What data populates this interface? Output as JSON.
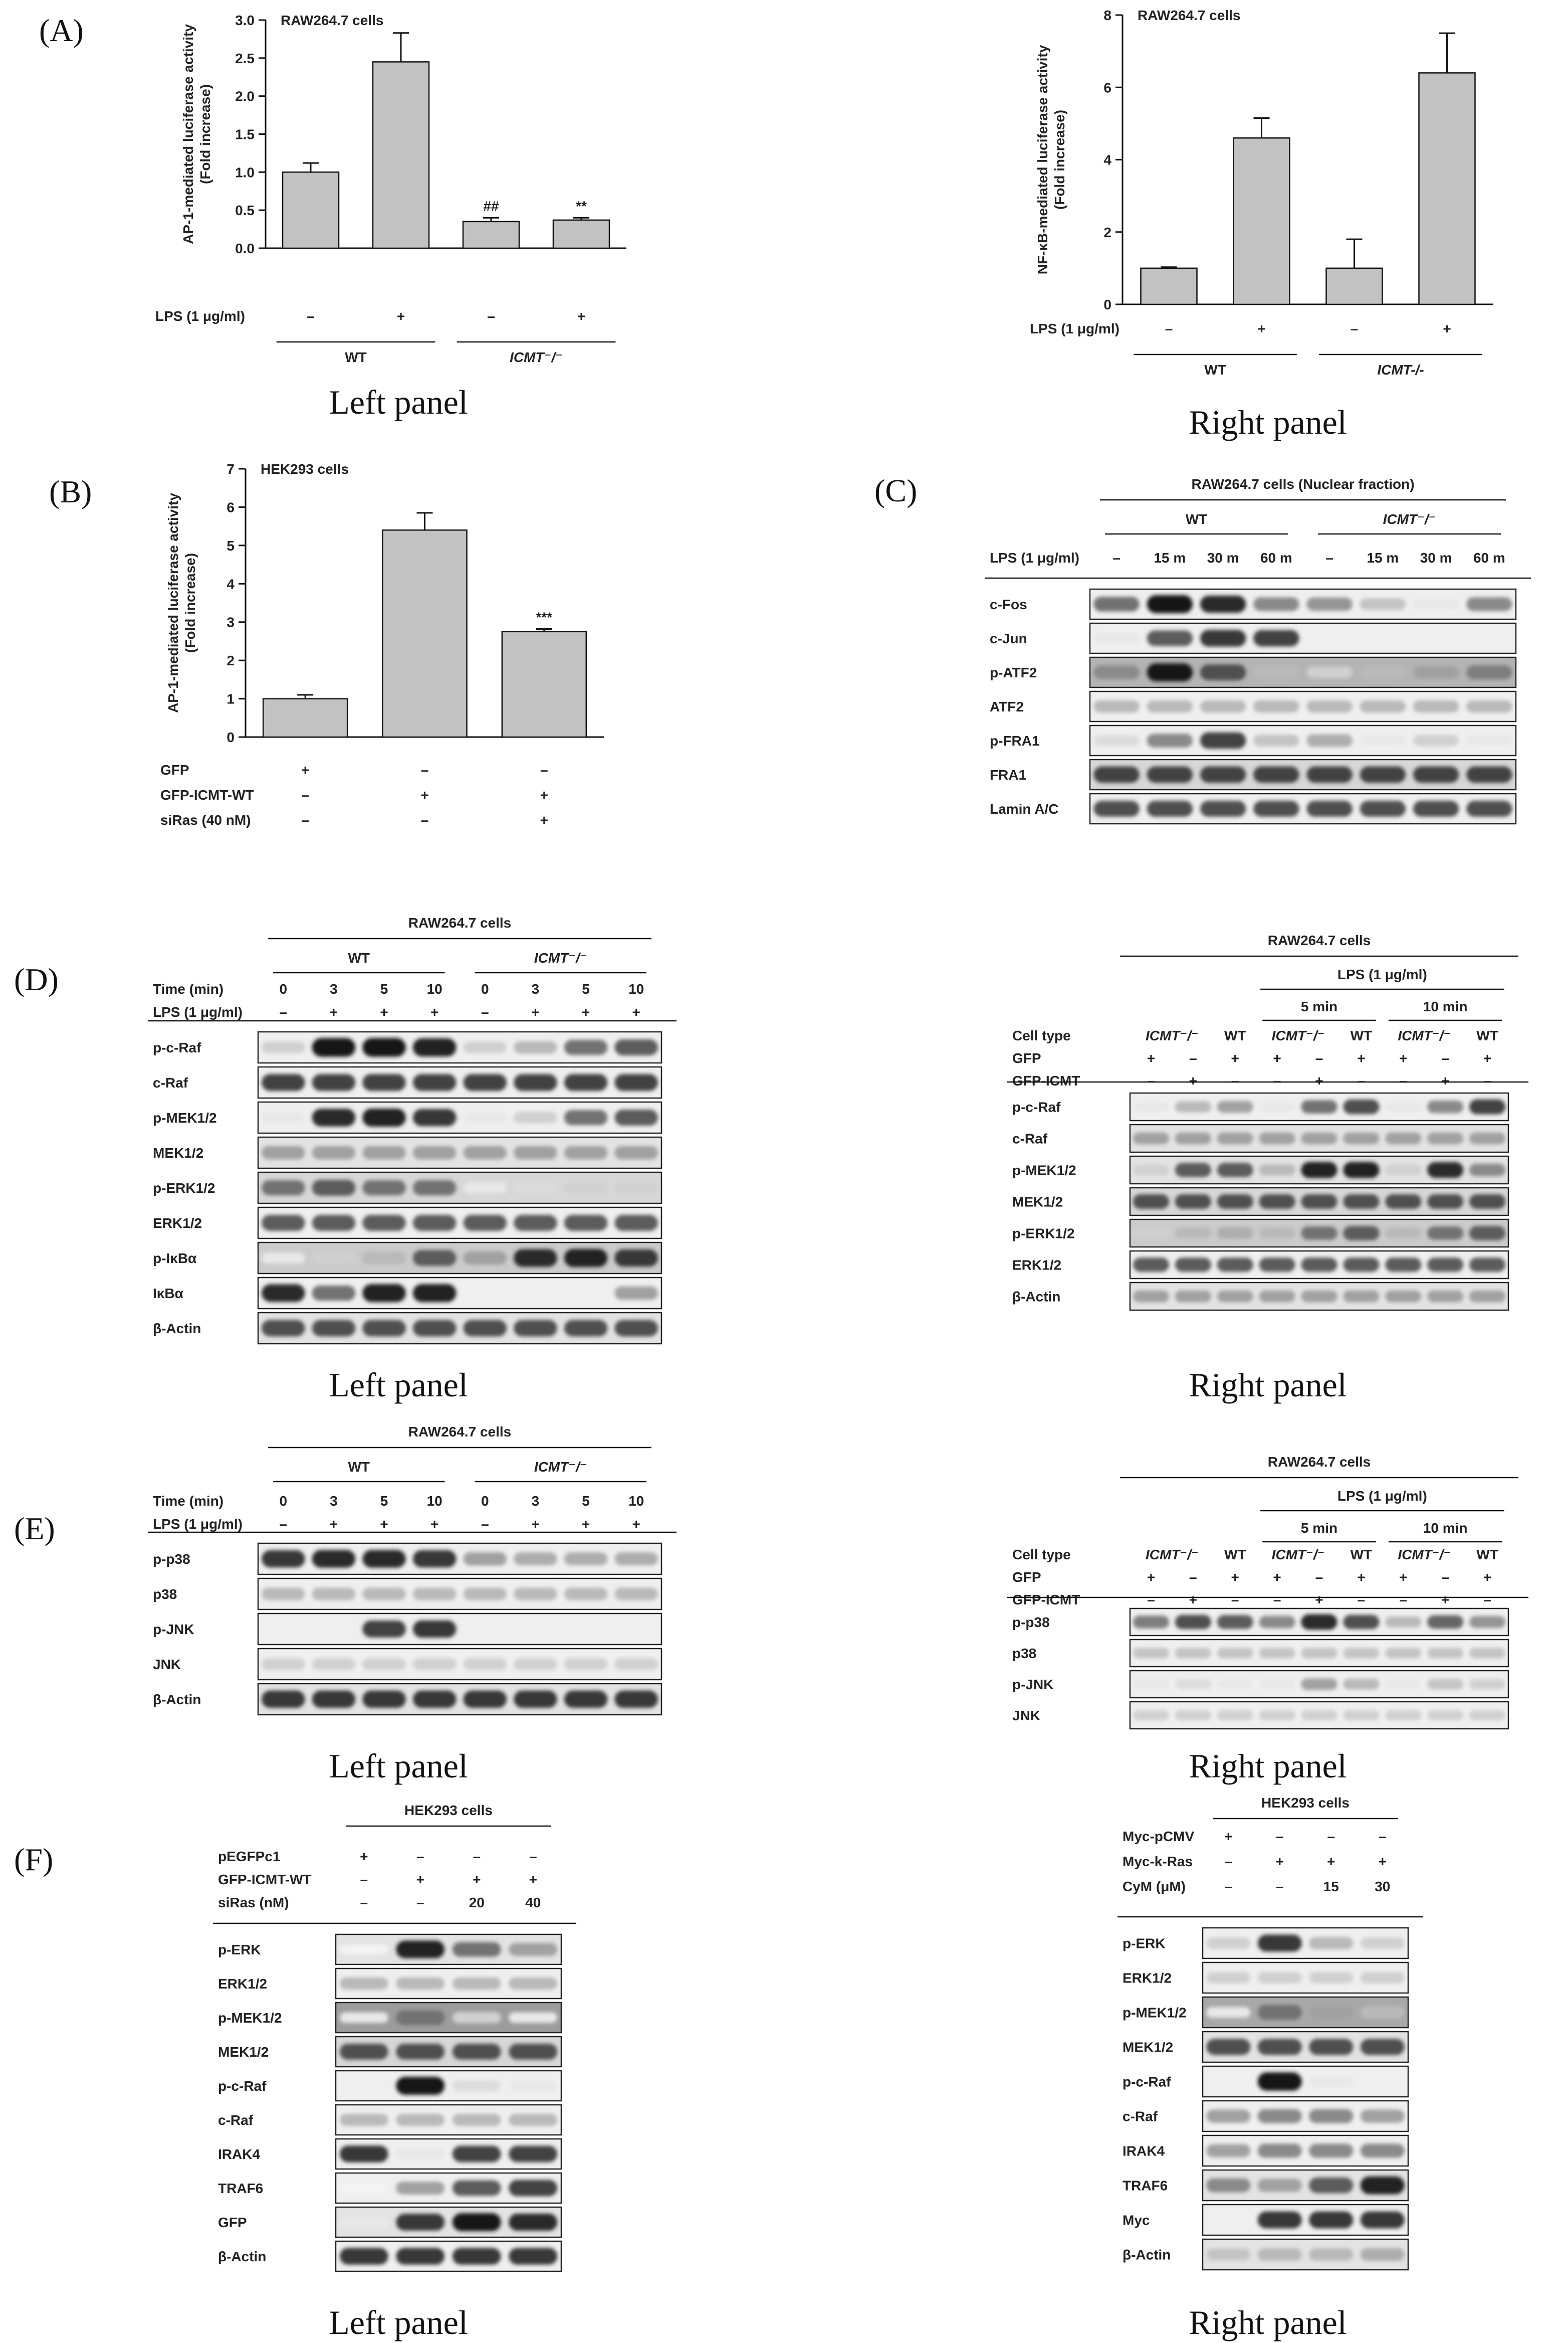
{
  "panels": {
    "A": "(A)",
    "B": "(B)",
    "C": "(C)",
    "D": "(D)",
    "E": "(E)",
    "F": "(F)"
  },
  "captions": {
    "left": "Left panel",
    "right": "Right panel"
  },
  "chart_data": [
    {
      "id": "A-left",
      "type": "bar",
      "title": "RAW264.7 cells",
      "ylabel": "AP-1-mediated luciferase activity (Fold increase)",
      "ylim": [
        0,
        3.0
      ],
      "yticks": [
        "0.0",
        "0.5",
        "1.0",
        "1.5",
        "2.0",
        "2.5",
        "3.0"
      ],
      "values": [
        1.0,
        2.45,
        0.35,
        0.37
      ],
      "errors": [
        0.12,
        0.38,
        0.05,
        0.03
      ],
      "annotations": [
        "",
        "",
        "##",
        "**"
      ],
      "rows": [
        {
          "label": "LPS (1 μg/ml)",
          "values": [
            "–",
            "+",
            "–",
            "+"
          ]
        }
      ],
      "groups": [
        {
          "label": "WT",
          "italic": false
        },
        {
          "label": "ICMT⁻/⁻",
          "italic": true
        }
      ]
    },
    {
      "id": "A-right",
      "type": "bar",
      "title": "RAW264.7 cells",
      "ylabel": "NF-κB-mediated luciferase activity (Fold increase)",
      "ylim": [
        0,
        8
      ],
      "yticks": [
        "0",
        "2",
        "4",
        "6",
        "8"
      ],
      "values": [
        1.0,
        4.6,
        1.0,
        6.4
      ],
      "errors": [
        0.03,
        0.55,
        0.8,
        1.1
      ],
      "annotations": [
        "",
        "",
        "",
        ""
      ],
      "rows": [
        {
          "label": "LPS (1 μg/ml)",
          "values": [
            "–",
            "+",
            "–",
            "+"
          ]
        }
      ],
      "groups": [
        {
          "label": "WT",
          "italic": false
        },
        {
          "label": "ICMT-/-",
          "italic": true
        }
      ]
    },
    {
      "id": "B",
      "type": "bar",
      "title": "HEK293 cells",
      "ylabel": "AP-1-mediated luciferase activity (Fold increase)",
      "ylim": [
        0,
        7
      ],
      "yticks": [
        "0",
        "1",
        "2",
        "3",
        "4",
        "5",
        "6",
        "7"
      ],
      "values": [
        1.0,
        5.4,
        2.75
      ],
      "errors": [
        0.1,
        0.45,
        0.07
      ],
      "annotations": [
        "",
        "",
        "***"
      ],
      "rows": [
        {
          "label": "GFP",
          "values": [
            "+",
            "–",
            "–"
          ]
        },
        {
          "label": "GFP-ICMT-WT",
          "values": [
            "–",
            "+",
            "+"
          ]
        },
        {
          "label": "siRas (40 nM)",
          "values": [
            "–",
            "–",
            "+"
          ]
        }
      ]
    }
  ],
  "blots": {
    "C": {
      "title": "RAW264.7 cells (Nuclear fraction)",
      "groups": [
        {
          "label": "WT",
          "italic": false
        },
        {
          "label": "ICMT⁻/⁻",
          "italic": true
        }
      ],
      "rows": [
        {
          "label": "LPS (1 μg/ml)",
          "values": [
            "–",
            "15 m",
            "30 m",
            "60 m",
            "–",
            "15 m",
            "30 m",
            "60 m"
          ]
        }
      ],
      "bands": [
        {
          "label": "c-Fos",
          "i": [
            0.6,
            1.0,
            0.9,
            0.5,
            0.45,
            0.25,
            0.1,
            0.5
          ],
          "bg": 0.0
        },
        {
          "label": "c-Jun",
          "i": [
            0.1,
            0.7,
            0.85,
            0.8,
            0,
            0,
            0,
            0
          ],
          "bg": 0.0
        },
        {
          "label": "p-ATF2",
          "i": [
            0.5,
            1.0,
            0.75,
            0.3,
            0.2,
            0.3,
            0.4,
            0.55
          ],
          "bg": 0.25
        },
        {
          "label": "ATF2",
          "i": [
            0.3,
            0.3,
            0.3,
            0.3,
            0.3,
            0.3,
            0.3,
            0.3
          ],
          "bg": 0.0
        },
        {
          "label": "p-FRA1",
          "i": [
            0.15,
            0.5,
            0.8,
            0.25,
            0.35,
            0.1,
            0.2,
            0.1
          ],
          "bg": 0.0
        },
        {
          "label": "FRA1",
          "i": [
            0.8,
            0.8,
            0.8,
            0.8,
            0.8,
            0.8,
            0.8,
            0.8
          ],
          "bg": 0.1
        },
        {
          "label": "Lamin A/C",
          "i": [
            0.75,
            0.75,
            0.75,
            0.75,
            0.75,
            0.75,
            0.75,
            0.75
          ],
          "bg": 0.0
        }
      ]
    },
    "D_left": {
      "title": "RAW264.7 cells",
      "groups": [
        {
          "label": "WT",
          "italic": false
        },
        {
          "label": "ICMT⁻/⁻",
          "italic": true
        }
      ],
      "rows": [
        {
          "label": "Time (min)",
          "values": [
            "0",
            "3",
            "5",
            "10",
            "0",
            "3",
            "5",
            "10"
          ]
        },
        {
          "label": "LPS (1 μg/ml)",
          "values": [
            "–",
            "+",
            "+",
            "+",
            "–",
            "+",
            "+",
            "+"
          ]
        }
      ],
      "bands": [
        {
          "label": "p-c-Raf",
          "i": [
            0.2,
            1.0,
            1.0,
            0.95,
            0.2,
            0.3,
            0.6,
            0.7
          ],
          "bg": 0.0
        },
        {
          "label": "c-Raf",
          "i": [
            0.8,
            0.8,
            0.8,
            0.8,
            0.8,
            0.8,
            0.8,
            0.8
          ],
          "bg": 0.0
        },
        {
          "label": "p-MEK1/2",
          "i": [
            0.1,
            0.9,
            0.95,
            0.85,
            0.1,
            0.2,
            0.6,
            0.7
          ],
          "bg": 0.0
        },
        {
          "label": "MEK1/2",
          "i": [
            0.4,
            0.4,
            0.4,
            0.4,
            0.4,
            0.4,
            0.4,
            0.4
          ],
          "bg": 0.05
        },
        {
          "label": "p-ERK1/2",
          "i": [
            0.6,
            0.7,
            0.6,
            0.6,
            0.1,
            0.15,
            0.2,
            0.2
          ],
          "bg": 0.1
        },
        {
          "label": "ERK1/2",
          "i": [
            0.7,
            0.7,
            0.7,
            0.7,
            0.7,
            0.7,
            0.7,
            0.7
          ],
          "bg": 0.0
        },
        {
          "label": "p-IκBα",
          "i": [
            0.1,
            0.2,
            0.3,
            0.7,
            0.4,
            0.9,
            0.95,
            0.85
          ],
          "bg": 0.15
        },
        {
          "label": "IκBα",
          "i": [
            0.9,
            0.6,
            0.95,
            0.95,
            0,
            0,
            0,
            0.4
          ],
          "bg": 0.0
        },
        {
          "label": "β-Actin",
          "i": [
            0.75,
            0.75,
            0.75,
            0.75,
            0.75,
            0.75,
            0.75,
            0.75
          ],
          "bg": 0.05
        }
      ]
    },
    "D_right": {
      "title": "RAW264.7 cells",
      "lps": "LPS (1 μg/ml)",
      "times": [
        "5 min",
        "10 min"
      ],
      "rows": [
        {
          "label": "Cell type",
          "values": [
            "ICMT⁻/⁻",
            "WT",
            "ICMT⁻/⁻",
            "WT",
            "ICMT⁻/⁻",
            "WT"
          ]
        },
        {
          "label": "GFP",
          "values": [
            "+",
            "–",
            "+",
            "+",
            "–",
            "+",
            "+",
            "–",
            "+"
          ]
        },
        {
          "label": "GFP-ICMT",
          "values": [
            "–",
            "+",
            "–",
            "–",
            "+",
            "–",
            "–",
            "+",
            "–"
          ]
        }
      ],
      "bands": [
        {
          "label": "p-c-Raf",
          "i": [
            0.1,
            0.3,
            0.4,
            0.1,
            0.6,
            0.75,
            0.1,
            0.5,
            0.8
          ],
          "bg": 0.0
        },
        {
          "label": "c-Raf",
          "i": [
            0.4,
            0.4,
            0.4,
            0.4,
            0.4,
            0.4,
            0.4,
            0.4,
            0.4
          ],
          "bg": 0.05
        },
        {
          "label": "p-MEK1/2",
          "i": [
            0.2,
            0.7,
            0.7,
            0.3,
            0.95,
            0.95,
            0.2,
            0.9,
            0.5
          ],
          "bg": 0.05
        },
        {
          "label": "MEK1/2",
          "i": [
            0.75,
            0.75,
            0.75,
            0.75,
            0.75,
            0.75,
            0.75,
            0.75,
            0.75
          ],
          "bg": 0.1
        },
        {
          "label": "p-ERK1/2",
          "i": [
            0.2,
            0.3,
            0.35,
            0.3,
            0.6,
            0.7,
            0.3,
            0.6,
            0.7
          ],
          "bg": 0.15
        },
        {
          "label": "ERK1/2",
          "i": [
            0.7,
            0.7,
            0.7,
            0.7,
            0.7,
            0.7,
            0.7,
            0.7,
            0.7
          ],
          "bg": 0.0
        },
        {
          "label": "β-Actin",
          "i": [
            0.4,
            0.4,
            0.4,
            0.4,
            0.4,
            0.4,
            0.4,
            0.4,
            0.4
          ],
          "bg": 0.05
        }
      ]
    },
    "E_left": {
      "title": "RAW264.7 cells",
      "groups": [
        {
          "label": "WT",
          "italic": false
        },
        {
          "label": "ICMT⁻/⁻",
          "italic": true
        }
      ],
      "rows": [
        {
          "label": "Time (min)",
          "values": [
            "0",
            "3",
            "5",
            "10",
            "0",
            "3",
            "5",
            "10"
          ]
        },
        {
          "label": "LPS (1 μg/ml)",
          "values": [
            "–",
            "+",
            "+",
            "+",
            "–",
            "+",
            "+",
            "+"
          ]
        }
      ],
      "bands": [
        {
          "label": "p-p38",
          "i": [
            0.85,
            0.9,
            0.9,
            0.85,
            0.4,
            0.35,
            0.35,
            0.35
          ],
          "bg": 0.0
        },
        {
          "label": "p38",
          "i": [
            0.3,
            0.3,
            0.3,
            0.3,
            0.3,
            0.3,
            0.3,
            0.3
          ],
          "bg": 0.0
        },
        {
          "label": "p-JNK",
          "i": [
            0,
            0,
            0.8,
            0.85,
            0,
            0,
            0,
            0
          ],
          "bg": 0.0
        },
        {
          "label": "JNK",
          "i": [
            0.2,
            0.2,
            0.2,
            0.2,
            0.2,
            0.2,
            0.2,
            0.2
          ],
          "bg": 0.0
        },
        {
          "label": "β-Actin",
          "i": [
            0.85,
            0.85,
            0.85,
            0.85,
            0.85,
            0.85,
            0.85,
            0.85
          ],
          "bg": 0.05
        }
      ]
    },
    "E_right": {
      "title": "RAW264.7 cells",
      "lps": "LPS (1 μg/ml)",
      "times": [
        "5 min",
        "10 min"
      ],
      "rows": [
        {
          "label": "Cell type",
          "values": [
            "ICMT⁻/⁻",
            "WT",
            "ICMT⁻/⁻",
            "WT",
            "ICMT⁻/⁻",
            "WT"
          ]
        },
        {
          "label": "GFP",
          "values": [
            "+",
            "–",
            "+",
            "+",
            "–",
            "+",
            "+",
            "–",
            "+"
          ]
        },
        {
          "label": "GFP-ICMT",
          "values": [
            "–",
            "+",
            "–",
            "–",
            "+",
            "–",
            "–",
            "+",
            "–"
          ]
        }
      ],
      "bands": [
        {
          "label": "p-p38",
          "i": [
            0.55,
            0.75,
            0.7,
            0.5,
            0.9,
            0.75,
            0.3,
            0.65,
            0.45
          ],
          "bg": 0.0
        },
        {
          "label": "p38",
          "i": [
            0.25,
            0.25,
            0.25,
            0.25,
            0.25,
            0.25,
            0.25,
            0.25,
            0.25
          ],
          "bg": 0.0
        },
        {
          "label": "p-JNK",
          "i": [
            0.1,
            0.15,
            0.1,
            0.1,
            0.4,
            0.3,
            0.1,
            0.25,
            0.2
          ],
          "bg": 0.0
        },
        {
          "label": "JNK",
          "i": [
            0.2,
            0.2,
            0.2,
            0.2,
            0.2,
            0.2,
            0.2,
            0.2,
            0.2
          ],
          "bg": 0.0
        }
      ]
    },
    "F_left": {
      "title": "HEK293 cells",
      "rows": [
        {
          "label": "pEGFPc1",
          "values": [
            "+",
            "–",
            "–",
            "–"
          ]
        },
        {
          "label": "GFP-ICMT-WT",
          "values": [
            "–",
            "+",
            "+",
            "+"
          ]
        },
        {
          "label": "siRas (nM)",
          "values": [
            "–",
            "–",
            "20",
            "40"
          ]
        }
      ],
      "bands": [
        {
          "label": "p-ERK",
          "i": [
            0.05,
            0.95,
            0.6,
            0.4
          ],
          "bg": 0.05
        },
        {
          "label": "ERK1/2",
          "i": [
            0.3,
            0.3,
            0.3,
            0.3
          ],
          "bg": 0.0
        },
        {
          "label": "p-MEK1/2",
          "i": [
            0.1,
            0.6,
            0.2,
            0.1
          ],
          "bg": 0.35
        },
        {
          "label": "MEK1/2",
          "i": [
            0.75,
            0.75,
            0.75,
            0.75
          ],
          "bg": 0.1
        },
        {
          "label": "p-c-Raf",
          "i": [
            0,
            1.0,
            0.15,
            0.1
          ],
          "bg": 0.0
        },
        {
          "label": "c-Raf",
          "i": [
            0.3,
            0.3,
            0.3,
            0.3
          ],
          "bg": 0.0
        },
        {
          "label": "IRAK4",
          "i": [
            0.85,
            0.1,
            0.8,
            0.8
          ],
          "bg": 0.0
        },
        {
          "label": "TRAF6",
          "i": [
            0.05,
            0.4,
            0.7,
            0.8
          ],
          "bg": 0.0
        },
        {
          "label": "GFP",
          "i": [
            0.1,
            0.85,
            1.0,
            0.9
          ],
          "bg": 0.05
        },
        {
          "label": "β-Actin",
          "i": [
            0.85,
            0.85,
            0.85,
            0.85
          ],
          "bg": 0.0
        }
      ]
    },
    "F_right": {
      "title": "HEK293 cells",
      "rows": [
        {
          "label": "Myc-pCMV",
          "values": [
            "+",
            "–",
            "–",
            "–"
          ]
        },
        {
          "label": "Myc-k-Ras",
          "values": [
            "–",
            "+",
            "+",
            "+"
          ]
        },
        {
          "label": "CyM (μM)",
          "values": [
            "–",
            "–",
            "15",
            "30"
          ]
        }
      ],
      "bands": [
        {
          "label": "p-ERK",
          "i": [
            0.2,
            0.85,
            0.3,
            0.2
          ],
          "bg": 0.0
        },
        {
          "label": "ERK1/2",
          "i": [
            0.2,
            0.2,
            0.2,
            0.2
          ],
          "bg": 0.0
        },
        {
          "label": "p-MEK1/2",
          "i": [
            0.1,
            0.6,
            0.4,
            0.3
          ],
          "bg": 0.3
        },
        {
          "label": "MEK1/2",
          "i": [
            0.75,
            0.75,
            0.75,
            0.75
          ],
          "bg": 0.05
        },
        {
          "label": "p-c-Raf",
          "i": [
            0,
            1.0,
            0.1,
            0
          ],
          "bg": 0.0
        },
        {
          "label": "c-Raf",
          "i": [
            0.4,
            0.5,
            0.5,
            0.4
          ],
          "bg": 0.0
        },
        {
          "label": "IRAK4",
          "i": [
            0.4,
            0.5,
            0.5,
            0.5
          ],
          "bg": 0.0
        },
        {
          "label": "TRAF6",
          "i": [
            0.5,
            0.4,
            0.7,
            0.95
          ],
          "bg": 0.05
        },
        {
          "label": "Myc",
          "i": [
            0,
            0.85,
            0.85,
            0.85
          ],
          "bg": 0.0
        },
        {
          "label": "β-Actin",
          "i": [
            0.25,
            0.3,
            0.3,
            0.35
          ],
          "bg": 0.05
        }
      ]
    }
  }
}
